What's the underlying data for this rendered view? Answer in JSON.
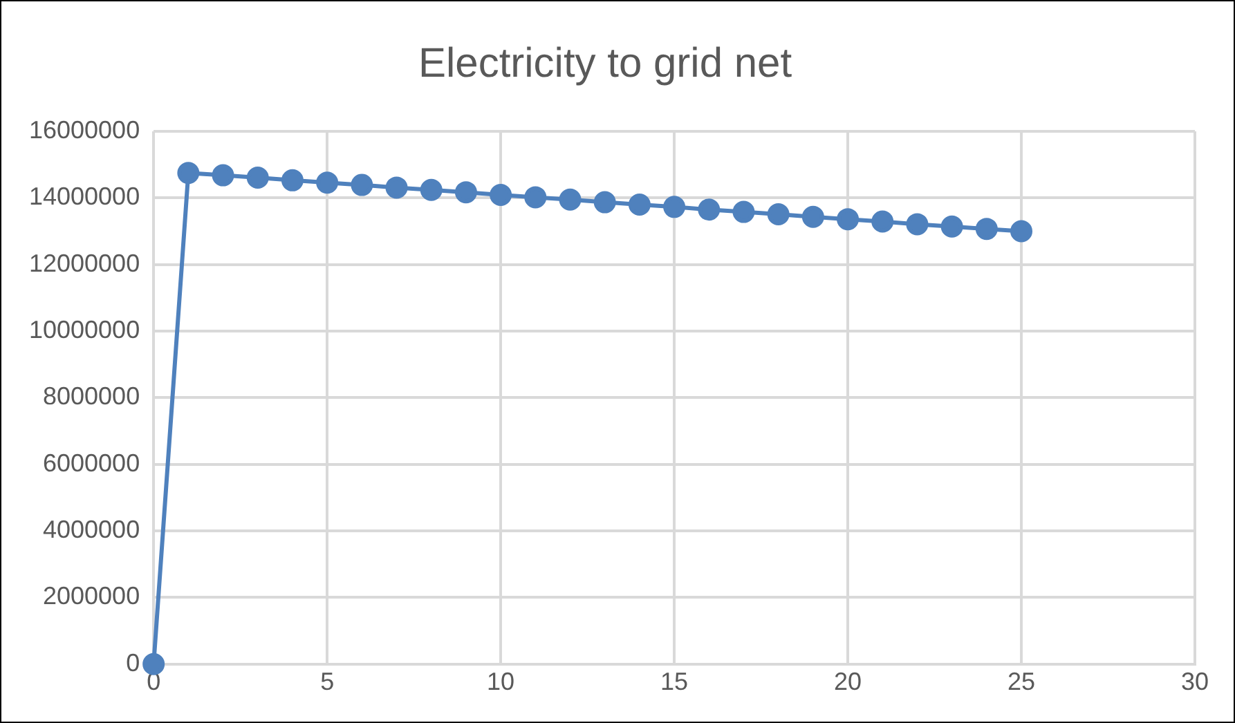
{
  "chart_data": {
    "type": "line",
    "title": "Electricity to grid net",
    "x": [
      0,
      1,
      2,
      3,
      4,
      5,
      6,
      7,
      8,
      9,
      10,
      11,
      12,
      13,
      14,
      15,
      16,
      17,
      18,
      19,
      20,
      21,
      22,
      23,
      24,
      25
    ],
    "series": [
      {
        "color": "#4f81bd",
        "values": [
          0,
          14750000,
          14680000,
          14610000,
          14530000,
          14460000,
          14390000,
          14310000,
          14240000,
          14170000,
          14090000,
          14020000,
          13950000,
          13870000,
          13800000,
          13730000,
          13650000,
          13580000,
          13510000,
          13430000,
          13360000,
          13290000,
          13210000,
          13140000,
          13070000,
          13000000
        ]
      }
    ],
    "xlim": [
      0,
      30
    ],
    "xticks": [
      0,
      5,
      10,
      15,
      20,
      25,
      30
    ],
    "ylim": [
      0,
      16000000
    ],
    "yticks": [
      0,
      2000000,
      4000000,
      6000000,
      8000000,
      10000000,
      12000000,
      14000000,
      16000000
    ],
    "grid": true,
    "legend": false,
    "marker": "circle",
    "line_style": "solid"
  }
}
